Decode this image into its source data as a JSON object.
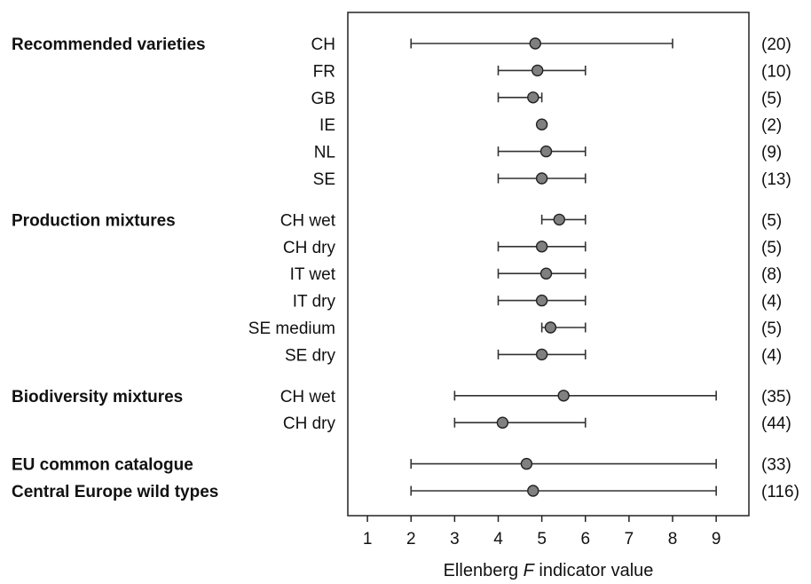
{
  "chart_data": {
    "type": "scatter",
    "xlabel_pre": "Ellenberg ",
    "xlabel_italic": "F",
    "xlabel_post": " indicator value",
    "xlim": [
      0.55,
      9.75
    ],
    "xticks": [
      1,
      2,
      3,
      4,
      5,
      6,
      7,
      8,
      9
    ],
    "grid": false,
    "marker_color": "#808080",
    "groups": [
      {
        "name": "Recommended varieties",
        "rows": [
          {
            "label": "CH",
            "mean": 4.85,
            "min": 2,
            "max": 8,
            "n": "(20)"
          },
          {
            "label": "FR",
            "mean": 4.9,
            "min": 4,
            "max": 6,
            "n": "(10)"
          },
          {
            "label": "GB",
            "mean": 4.8,
            "min": 4,
            "max": 5,
            "n": "(5)"
          },
          {
            "label": "IE",
            "mean": 5.0,
            "min": 5,
            "max": 5,
            "n": "(2)"
          },
          {
            "label": "NL",
            "mean": 5.1,
            "min": 4,
            "max": 6,
            "n": "(9)"
          },
          {
            "label": "SE",
            "mean": 5.0,
            "min": 4,
            "max": 6,
            "n": "(13)"
          }
        ]
      },
      {
        "name": "Production mixtures",
        "rows": [
          {
            "label": "CH wet",
            "mean": 5.4,
            "min": 5,
            "max": 6,
            "n": "(5)"
          },
          {
            "label": "CH dry",
            "mean": 5.0,
            "min": 4,
            "max": 6,
            "n": "(5)"
          },
          {
            "label": "IT wet",
            "mean": 5.1,
            "min": 4,
            "max": 6,
            "n": "(8)"
          },
          {
            "label": "IT dry",
            "mean": 5.0,
            "min": 4,
            "max": 6,
            "n": "(4)"
          },
          {
            "label": "SE medium",
            "mean": 5.2,
            "min": 5,
            "max": 6,
            "n": "(5)"
          },
          {
            "label": "SE dry",
            "mean": 5.0,
            "min": 4,
            "max": 6,
            "n": "(4)"
          }
        ]
      },
      {
        "name": "Biodiversity mixtures",
        "rows": [
          {
            "label": "CH wet",
            "mean": 5.5,
            "min": 3,
            "max": 9,
            "n": "(35)"
          },
          {
            "label": "CH dry",
            "mean": 4.1,
            "min": 3,
            "max": 6,
            "n": "(44)"
          }
        ]
      },
      {
        "name": "",
        "rows": [
          {
            "label": "EU common catalogue",
            "bold": true,
            "mean": 4.65,
            "min": 2,
            "max": 9,
            "n": "(33)"
          },
          {
            "label": "Central Europe wild types",
            "bold": true,
            "mean": 4.8,
            "min": 2,
            "max": 9,
            "n": "(116)"
          }
        ]
      }
    ]
  }
}
